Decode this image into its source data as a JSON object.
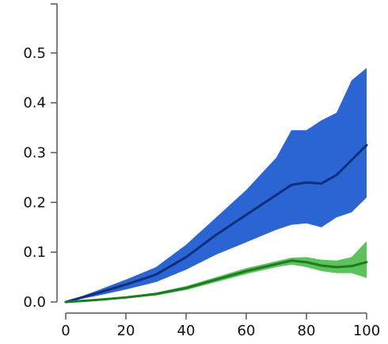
{
  "chart_data": {
    "type": "area",
    "title": "",
    "xlabel": "",
    "ylabel": "",
    "xlim": [
      0,
      100
    ],
    "ylim": [
      0,
      0.6
    ],
    "x_ticks": [
      0,
      20,
      40,
      60,
      80,
      100
    ],
    "x_tick_labels": [
      "0",
      "20",
      "40",
      "60",
      "80",
      "100"
    ],
    "y_ticks": [
      0.0,
      0.1,
      0.2,
      0.3,
      0.4,
      0.5
    ],
    "y_tick_labels": [
      "0.0",
      "0.1",
      "0.2",
      "0.3",
      "0.4",
      "0.5"
    ],
    "grid": false,
    "legend": "none",
    "series": [
      {
        "line_color": "#0f2f7a",
        "band_color": "#2b65d3",
        "x": [
          0,
          10,
          20,
          30,
          40,
          50,
          60,
          70,
          75,
          80,
          85,
          90,
          95,
          100
        ],
        "mean": [
          0.0,
          0.017,
          0.035,
          0.055,
          0.09,
          0.135,
          0.175,
          0.215,
          0.235,
          0.24,
          0.238,
          0.255,
          0.285,
          0.315
        ],
        "lower": [
          0.0,
          0.012,
          0.025,
          0.04,
          0.065,
          0.095,
          0.12,
          0.145,
          0.155,
          0.158,
          0.15,
          0.17,
          0.18,
          0.21
        ],
        "upper": [
          0.0,
          0.022,
          0.045,
          0.07,
          0.115,
          0.17,
          0.225,
          0.29,
          0.345,
          0.345,
          0.365,
          0.38,
          0.445,
          0.47
        ]
      },
      {
        "line_color": "#1f7a1f",
        "band_color": "#5cc25c",
        "x": [
          0,
          10,
          20,
          30,
          40,
          50,
          60,
          70,
          75,
          80,
          85,
          90,
          95,
          100
        ],
        "mean": [
          0.0,
          0.004,
          0.009,
          0.016,
          0.028,
          0.045,
          0.062,
          0.076,
          0.083,
          0.08,
          0.073,
          0.07,
          0.072,
          0.08
        ],
        "lower": [
          0.0,
          0.003,
          0.007,
          0.013,
          0.024,
          0.04,
          0.056,
          0.07,
          0.075,
          0.07,
          0.062,
          0.058,
          0.058,
          0.048
        ],
        "upper": [
          0.0,
          0.005,
          0.011,
          0.019,
          0.032,
          0.05,
          0.068,
          0.082,
          0.089,
          0.09,
          0.085,
          0.083,
          0.09,
          0.122
        ]
      }
    ]
  }
}
